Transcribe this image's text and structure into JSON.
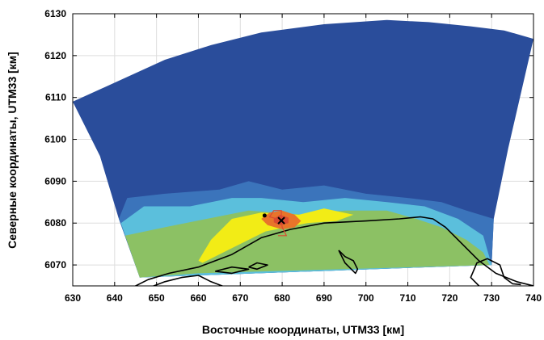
{
  "chart_data": {
    "type": "heatmap",
    "title": "",
    "xlabel": "Восточные координаты, UTM33 [км]",
    "ylabel": "Северные координаты, UTM33 [км]",
    "xlim": [
      630,
      740
    ],
    "ylim": [
      6065,
      6130
    ],
    "xticks": [
      630,
      640,
      650,
      660,
      670,
      680,
      690,
      700,
      710,
      720,
      730,
      740
    ],
    "yticks": [
      6070,
      6080,
      6090,
      6100,
      6110,
      6120,
      6130
    ],
    "grid": true,
    "colors": {
      "level_1": "#2a4d9b",
      "level_2": "#3b74bb",
      "level_3": "#5bbfdc",
      "level_4": "#8cc164",
      "level_5": "#f2ec16",
      "level_6": "#e8742a",
      "level_7": "#d94a32",
      "coastline": "#000000",
      "grid": "#dddddd"
    },
    "domain_outline": [
      [
        630,
        6109
      ],
      [
        641,
        6114
      ],
      [
        652,
        6119
      ],
      [
        663,
        6122.5
      ],
      [
        675,
        6125.5
      ],
      [
        690,
        6127.5
      ],
      [
        705,
        6128.5
      ],
      [
        715,
        6128
      ],
      [
        725,
        6127
      ],
      [
        733,
        6126
      ],
      [
        740,
        6124
      ],
      [
        734,
        6098
      ],
      [
        730.5,
        6081
      ],
      [
        730,
        6070
      ],
      [
        646,
        6067
      ],
      [
        641,
        6081
      ],
      [
        636.5,
        6096
      ],
      [
        630,
        6109
      ]
    ],
    "contours": [
      {
        "level": "level_2",
        "polygon": [
          [
            641,
            6081
          ],
          [
            643,
            6086
          ],
          [
            652,
            6087
          ],
          [
            665,
            6088
          ],
          [
            672,
            6090
          ],
          [
            680,
            6088
          ],
          [
            690,
            6089
          ],
          [
            700,
            6087
          ],
          [
            710,
            6086
          ],
          [
            718,
            6085
          ],
          [
            724,
            6083
          ],
          [
            730.5,
            6081
          ],
          [
            730,
            6070
          ],
          [
            646,
            6067
          ],
          [
            641,
            6081
          ]
        ]
      },
      {
        "level": "level_3",
        "polygon": [
          [
            641.5,
            6080
          ],
          [
            647,
            6084
          ],
          [
            658,
            6084
          ],
          [
            668,
            6086
          ],
          [
            675,
            6086
          ],
          [
            685,
            6085
          ],
          [
            695,
            6086
          ],
          [
            705,
            6085
          ],
          [
            714,
            6084
          ],
          [
            722,
            6081
          ],
          [
            728,
            6077
          ],
          [
            730,
            6070
          ],
          [
            646,
            6067
          ],
          [
            641.5,
            6080
          ]
        ]
      },
      {
        "level": "level_4",
        "polygon": [
          [
            642.5,
            6077
          ],
          [
            652,
            6079
          ],
          [
            662,
            6081
          ],
          [
            672,
            6083
          ],
          [
            685,
            6082
          ],
          [
            695,
            6083
          ],
          [
            705,
            6083
          ],
          [
            712,
            6081
          ],
          [
            718,
            6079
          ],
          [
            724,
            6076
          ],
          [
            728,
            6073
          ],
          [
            729.5,
            6070
          ],
          [
            660,
            6068
          ],
          [
            646,
            6067
          ],
          [
            642.5,
            6077
          ]
        ]
      },
      {
        "level": "level_5",
        "polygon": [
          [
            660,
            6071
          ],
          [
            663,
            6076
          ],
          [
            668,
            6081
          ],
          [
            675,
            6082.5
          ],
          [
            684,
            6082
          ],
          [
            690,
            6083.5
          ],
          [
            697,
            6082
          ],
          [
            693,
            6080.5
          ],
          [
            686,
            6080
          ],
          [
            676,
            6078
          ],
          [
            668,
            6074
          ],
          [
            661,
            6070.5
          ],
          [
            660,
            6071
          ]
        ]
      },
      {
        "level": "level_6",
        "polygon": [
          [
            675,
            6081
          ],
          [
            677,
            6082.5
          ],
          [
            680,
            6083
          ],
          [
            683,
            6082
          ],
          [
            684.5,
            6080.5
          ],
          [
            683,
            6079
          ],
          [
            680,
            6078.5
          ],
          [
            676.5,
            6079.5
          ],
          [
            675,
            6081
          ]
        ]
      },
      {
        "level": "level_7",
        "polygon": [
          [
            678,
            6081
          ],
          [
            679.5,
            6082
          ],
          [
            681.5,
            6081.3
          ],
          [
            681.5,
            6080
          ],
          [
            679.5,
            6079.5
          ],
          [
            678,
            6080.2
          ],
          [
            678,
            6081
          ]
        ]
      }
    ],
    "coastlines": [
      [
        [
          643,
          6064
        ],
        [
          648,
          6066.5
        ],
        [
          653,
          6068
        ],
        [
          660,
          6069.5
        ],
        [
          668,
          6072.5
        ],
        [
          675,
          6076.5
        ],
        [
          682,
          6078.5
        ],
        [
          690,
          6080
        ],
        [
          700,
          6080.5
        ],
        [
          708,
          6081
        ],
        [
          713,
          6081.5
        ],
        [
          716,
          6081
        ],
        [
          719,
          6079
        ],
        [
          723,
          6075
        ],
        [
          727,
          6071
        ],
        [
          731,
          6068
        ],
        [
          736,
          6066
        ],
        [
          740,
          6065
        ]
      ],
      [
        [
          648,
          6064.5
        ],
        [
          652,
          6066
        ],
        [
          656,
          6067
        ],
        [
          660,
          6067.5
        ],
        [
          663,
          6066
        ],
        [
          667,
          6064.5
        ]
      ],
      [
        [
          672,
          6069.5
        ],
        [
          674,
          6070.5
        ],
        [
          676.5,
          6070
        ],
        [
          674,
          6069
        ],
        [
          672,
          6069.5
        ]
      ],
      [
        [
          664,
          6068.5
        ],
        [
          668,
          6069.5
        ],
        [
          672,
          6069
        ],
        [
          668,
          6068
        ],
        [
          664,
          6068.5
        ]
      ],
      [
        [
          693.5,
          6073.5
        ],
        [
          695,
          6072
        ],
        [
          697,
          6071
        ],
        [
          698,
          6069
        ],
        [
          697.5,
          6068
        ],
        [
          696.5,
          6069
        ],
        [
          695,
          6070.5
        ],
        [
          693.5,
          6073.5
        ]
      ],
      [
        [
          727,
          6065
        ],
        [
          725,
          6067
        ],
        [
          726.5,
          6070.5
        ],
        [
          729,
          6071.5
        ],
        [
          732,
          6070
        ],
        [
          733,
          6067
        ],
        [
          735,
          6065.5
        ],
        [
          737,
          6065.3
        ]
      ]
    ],
    "source_line": [
      [
        679.5,
        6080.8
      ],
      [
        677,
        6081.5
      ],
      [
        678,
        6083
      ],
      [
        679.8,
        6083
      ],
      [
        679.8,
        6080.8
      ],
      [
        680,
        6079
      ],
      [
        681,
        6077
      ],
      [
        679,
        6077
      ]
    ],
    "markers": [
      {
        "kind": "dot",
        "x": 675.8,
        "y": 6081.8,
        "color": "#000000"
      },
      {
        "kind": "cross",
        "x": 679.8,
        "y": 6080.6,
        "color": "#000000"
      }
    ]
  }
}
